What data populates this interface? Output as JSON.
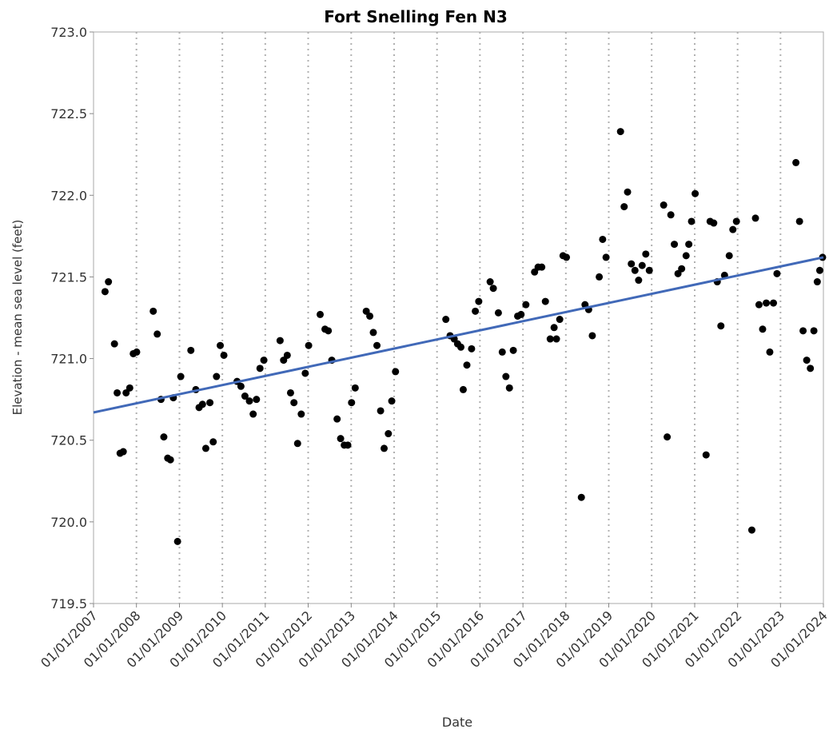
{
  "chart_data": {
    "type": "scatter",
    "title": "Fort Snelling Fen N3",
    "xlabel": "Date",
    "ylabel": "Elevation - mean sea level (feet)",
    "xlim": [
      "2007-01-01",
      "2024-01-01"
    ],
    "ylim": [
      719.5,
      723.0
    ],
    "x_ticks": [
      "01/01/2007",
      "01/01/2008",
      "01/01/2009",
      "01/01/2010",
      "01/01/2011",
      "01/01/2012",
      "01/01/2013",
      "01/01/2014",
      "01/01/2015",
      "01/01/2016",
      "01/01/2017",
      "01/01/2018",
      "01/01/2019",
      "01/01/2020",
      "01/01/2021",
      "01/01/2022",
      "01/01/2023",
      "01/01/2024"
    ],
    "y_ticks": [
      "719.5",
      "720.0",
      "720.5",
      "721.0",
      "721.5",
      "722.0",
      "722.5",
      "723.0"
    ],
    "grid": "vertical dotted at each year",
    "colors": {
      "points": "#000000",
      "trend": "#4169b8",
      "grid": "#b0b0b0",
      "axis": "#aaaaaa"
    },
    "trendline": {
      "x": [
        "2007-01-01",
        "2024-01-01"
      ],
      "y": [
        720.67,
        721.62
      ]
    },
    "points": [
      {
        "x": "2007-04-09",
        "y": 721.41
      },
      {
        "x": "2007-05-08",
        "y": 721.47
      },
      {
        "x": "2007-06-28",
        "y": 721.09
      },
      {
        "x": "2007-07-21",
        "y": 720.79
      },
      {
        "x": "2007-08-15",
        "y": 720.42
      },
      {
        "x": "2007-09-11",
        "y": 720.43
      },
      {
        "x": "2007-10-05",
        "y": 720.79
      },
      {
        "x": "2007-11-05",
        "y": 720.82
      },
      {
        "x": "2007-12-05",
        "y": 721.03
      },
      {
        "x": "2008-01-03",
        "y": 721.04
      },
      {
        "x": "2008-05-23",
        "y": 721.29
      },
      {
        "x": "2008-06-26",
        "y": 721.15
      },
      {
        "x": "2008-07-28",
        "y": 720.75
      },
      {
        "x": "2008-08-21",
        "y": 720.52
      },
      {
        "x": "2008-09-23",
        "y": 720.39
      },
      {
        "x": "2008-10-16",
        "y": 720.38
      },
      {
        "x": "2008-11-10",
        "y": 720.76
      },
      {
        "x": "2008-12-16",
        "y": 719.88
      },
      {
        "x": "2009-01-12",
        "y": 720.89
      },
      {
        "x": "2009-04-08",
        "y": 721.05
      },
      {
        "x": "2009-05-20",
        "y": 720.81
      },
      {
        "x": "2009-06-17",
        "y": 720.7
      },
      {
        "x": "2009-07-16",
        "y": 720.72
      },
      {
        "x": "2009-08-13",
        "y": 720.45
      },
      {
        "x": "2009-09-17",
        "y": 720.73
      },
      {
        "x": "2009-10-15",
        "y": 720.49
      },
      {
        "x": "2009-11-12",
        "y": 720.89
      },
      {
        "x": "2009-12-14",
        "y": 721.08
      },
      {
        "x": "2010-01-14",
        "y": 721.02
      },
      {
        "x": "2010-05-06",
        "y": 720.86
      },
      {
        "x": "2010-06-08",
        "y": 720.83
      },
      {
        "x": "2010-07-12",
        "y": 720.77
      },
      {
        "x": "2010-08-19",
        "y": 720.74
      },
      {
        "x": "2010-09-20",
        "y": 720.66
      },
      {
        "x": "2010-10-18",
        "y": 720.75
      },
      {
        "x": "2010-11-17",
        "y": 720.94
      },
      {
        "x": "2010-12-20",
        "y": 720.99
      },
      {
        "x": "2011-05-07",
        "y": 721.11
      },
      {
        "x": "2011-06-06",
        "y": 720.99
      },
      {
        "x": "2011-07-07",
        "y": 721.02
      },
      {
        "x": "2011-08-04",
        "y": 720.79
      },
      {
        "x": "2011-09-02",
        "y": 720.73
      },
      {
        "x": "2011-10-03",
        "y": 720.48
      },
      {
        "x": "2011-11-03",
        "y": 720.66
      },
      {
        "x": "2011-12-07",
        "y": 720.91
      },
      {
        "x": "2012-01-05",
        "y": 721.08
      },
      {
        "x": "2012-04-12",
        "y": 721.27
      },
      {
        "x": "2012-05-23",
        "y": 721.18
      },
      {
        "x": "2012-06-20",
        "y": 721.17
      },
      {
        "x": "2012-07-20",
        "y": 720.99
      },
      {
        "x": "2012-09-03",
        "y": 720.63
      },
      {
        "x": "2012-10-03",
        "y": 720.51
      },
      {
        "x": "2012-11-03",
        "y": 720.47
      },
      {
        "x": "2012-12-03",
        "y": 720.47
      },
      {
        "x": "2013-01-04",
        "y": 720.73
      },
      {
        "x": "2013-02-04",
        "y": 720.82
      },
      {
        "x": "2013-05-09",
        "y": 721.29
      },
      {
        "x": "2013-06-08",
        "y": 721.26
      },
      {
        "x": "2013-07-08",
        "y": 721.16
      },
      {
        "x": "2013-08-08",
        "y": 721.08
      },
      {
        "x": "2013-09-08",
        "y": 720.68
      },
      {
        "x": "2013-10-08",
        "y": 720.45
      },
      {
        "x": "2013-11-13",
        "y": 720.54
      },
      {
        "x": "2013-12-12",
        "y": 720.74
      },
      {
        "x": "2014-01-13",
        "y": 720.92
      },
      {
        "x": "2015-03-17",
        "y": 721.24
      },
      {
        "x": "2015-04-22",
        "y": 721.14
      },
      {
        "x": "2015-05-27",
        "y": 721.12
      },
      {
        "x": "2015-06-25",
        "y": 721.09
      },
      {
        "x": "2015-07-23",
        "y": 721.07
      },
      {
        "x": "2015-08-12",
        "y": 720.81
      },
      {
        "x": "2015-09-12",
        "y": 720.96
      },
      {
        "x": "2015-10-22",
        "y": 721.06
      },
      {
        "x": "2015-11-23",
        "y": 721.29
      },
      {
        "x": "2015-12-22",
        "y": 721.35
      },
      {
        "x": "2016-03-28",
        "y": 721.47
      },
      {
        "x": "2016-04-24",
        "y": 721.43
      },
      {
        "x": "2016-06-06",
        "y": 721.28
      },
      {
        "x": "2016-07-09",
        "y": 721.04
      },
      {
        "x": "2016-08-09",
        "y": 720.89
      },
      {
        "x": "2016-09-08",
        "y": 720.82
      },
      {
        "x": "2016-10-11",
        "y": 721.05
      },
      {
        "x": "2016-11-17",
        "y": 721.26
      },
      {
        "x": "2016-12-16",
        "y": 721.27
      },
      {
        "x": "2017-01-26",
        "y": 721.33
      },
      {
        "x": "2017-04-10",
        "y": 721.53
      },
      {
        "x": "2017-05-10",
        "y": 721.56
      },
      {
        "x": "2017-06-10",
        "y": 721.56
      },
      {
        "x": "2017-07-11",
        "y": 721.35
      },
      {
        "x": "2017-08-21",
        "y": 721.12
      },
      {
        "x": "2017-09-23",
        "y": 721.19
      },
      {
        "x": "2017-10-13",
        "y": 721.12
      },
      {
        "x": "2017-11-10",
        "y": 721.24
      },
      {
        "x": "2017-12-08",
        "y": 721.63
      },
      {
        "x": "2018-01-06",
        "y": 721.62
      },
      {
        "x": "2018-05-13",
        "y": 720.15
      },
      {
        "x": "2018-06-13",
        "y": 721.33
      },
      {
        "x": "2018-07-14",
        "y": 721.3
      },
      {
        "x": "2018-08-14",
        "y": 721.14
      },
      {
        "x": "2018-10-12",
        "y": 721.5
      },
      {
        "x": "2018-11-10",
        "y": 721.73
      },
      {
        "x": "2018-12-09",
        "y": 721.62
      },
      {
        "x": "2019-04-11",
        "y": 722.39
      },
      {
        "x": "2019-05-12",
        "y": 721.93
      },
      {
        "x": "2019-06-10",
        "y": 722.02
      },
      {
        "x": "2019-07-12",
        "y": 721.58
      },
      {
        "x": "2019-08-12",
        "y": 721.54
      },
      {
        "x": "2019-09-12",
        "y": 721.48
      },
      {
        "x": "2019-10-12",
        "y": 721.57
      },
      {
        "x": "2019-11-12",
        "y": 721.64
      },
      {
        "x": "2019-12-12",
        "y": 721.54
      },
      {
        "x": "2020-04-12",
        "y": 721.94
      },
      {
        "x": "2020-05-12",
        "y": 720.52
      },
      {
        "x": "2020-06-12",
        "y": 721.88
      },
      {
        "x": "2020-07-12",
        "y": 721.7
      },
      {
        "x": "2020-08-12",
        "y": 721.52
      },
      {
        "x": "2020-09-12",
        "y": 721.55
      },
      {
        "x": "2020-10-20",
        "y": 721.63
      },
      {
        "x": "2020-11-12",
        "y": 721.7
      },
      {
        "x": "2020-12-05",
        "y": 721.84
      },
      {
        "x": "2021-01-05",
        "y": 722.01
      },
      {
        "x": "2021-04-08",
        "y": 720.41
      },
      {
        "x": "2021-05-12",
        "y": 721.84
      },
      {
        "x": "2021-06-12",
        "y": 721.83
      },
      {
        "x": "2021-07-12",
        "y": 721.47
      },
      {
        "x": "2021-08-12",
        "y": 721.2
      },
      {
        "x": "2021-09-12",
        "y": 721.51
      },
      {
        "x": "2021-10-22",
        "y": 721.63
      },
      {
        "x": "2021-11-22",
        "y": 721.79
      },
      {
        "x": "2021-12-22",
        "y": 721.84
      },
      {
        "x": "2022-05-02",
        "y": 719.95
      },
      {
        "x": "2022-06-02",
        "y": 721.86
      },
      {
        "x": "2022-07-02",
        "y": 721.33
      },
      {
        "x": "2022-08-02",
        "y": 721.18
      },
      {
        "x": "2022-09-02",
        "y": 721.34
      },
      {
        "x": "2022-10-02",
        "y": 721.04
      },
      {
        "x": "2022-11-02",
        "y": 721.34
      },
      {
        "x": "2022-12-02",
        "y": 721.52
      },
      {
        "x": "2023-05-12",
        "y": 722.2
      },
      {
        "x": "2023-06-12",
        "y": 721.84
      },
      {
        "x": "2023-07-12",
        "y": 721.17
      },
      {
        "x": "2023-08-12",
        "y": 720.99
      },
      {
        "x": "2023-09-12",
        "y": 720.94
      },
      {
        "x": "2023-10-12",
        "y": 721.17
      },
      {
        "x": "2023-11-10",
        "y": 721.47
      },
      {
        "x": "2023-12-01",
        "y": 721.54
      },
      {
        "x": "2023-12-25",
        "y": 721.62
      }
    ]
  }
}
